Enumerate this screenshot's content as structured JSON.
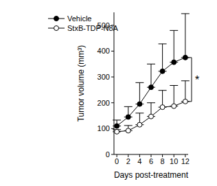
{
  "chart_data": {
    "type": "line",
    "x_label": "Days post-treatment",
    "y_label": "Tumor volume (mm³)",
    "x": [
      0,
      2,
      4,
      6,
      8,
      10,
      12
    ],
    "xlim": [
      -0.5,
      12.5
    ],
    "xticks": [
      0,
      2,
      4,
      6,
      8,
      10,
      12
    ],
    "ylim": [
      0,
      550
    ],
    "yticks": [
      0,
      100,
      200,
      300,
      400,
      500
    ],
    "grid": false,
    "legend": "upper left",
    "series": [
      {
        "name": "Vehicle",
        "color": "#000000",
        "marker": "circle",
        "values": [
          110,
          145,
          195,
          260,
          322,
          357,
          375
        ],
        "errors": [
          23,
          40,
          83,
          90,
          106,
          123,
          170
        ]
      },
      {
        "name": "StxB-TDP-N8A",
        "color": "#000000",
        "marker": "open_circle",
        "values": [
          88,
          92,
          115,
          147,
          183,
          187,
          205
        ],
        "errors": [
          8,
          20,
          45,
          53,
          65,
          80,
          80
        ]
      }
    ],
    "annotations": [
      {
        "text": "*"
      }
    ]
  }
}
